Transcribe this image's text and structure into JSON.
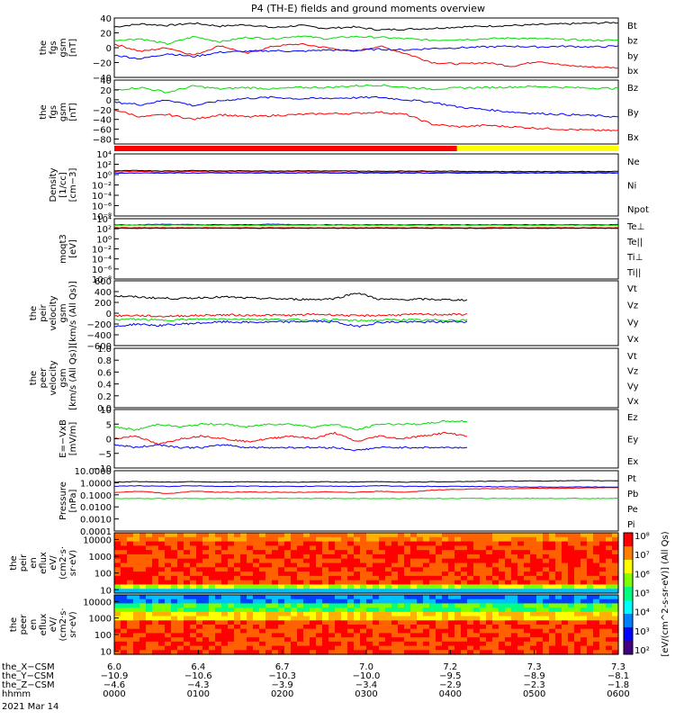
{
  "chart_data": {
    "type": "line",
    "title": "P4 (TH-E) fields and ground moments overview",
    "panels": [
      {
        "id": "fgs",
        "ylabel": [
          "the",
          "fgs",
          "gsm",
          "[nT]"
        ],
        "ylim": [
          -40,
          40
        ],
        "ticks": [
          "40",
          "20",
          "0",
          "−20",
          "−40"
        ],
        "tick_values": [
          40,
          20,
          0,
          -20,
          -40
        ],
        "series": [
          {
            "name": "Bt",
            "color": "#000000",
            "values": [
              28,
              32,
              30,
              33,
              29,
              31,
              27,
              30,
              26,
              28,
              24,
              25,
              26,
              28,
              29,
              30,
              31,
              32,
              33,
              34
            ]
          },
          {
            "name": "bz",
            "color": "#ff0000",
            "values": [
              5,
              -5,
              0,
              -10,
              3,
              -8,
              2,
              5,
              0,
              -5,
              2,
              -8,
              -20,
              -22,
              -20,
              -25,
              -18,
              -24,
              -26,
              -27
            ]
          },
          {
            "name": "by",
            "color": "#00dd00",
            "values": [
              10,
              12,
              5,
              15,
              8,
              14,
              12,
              16,
              12,
              15,
              14,
              12,
              10,
              11,
              12,
              13,
              12,
              11,
              10,
              10
            ]
          },
          {
            "name": "bx",
            "color": "#0000ff",
            "values": [
              -10,
              -15,
              -8,
              -12,
              -6,
              -5,
              -4,
              -5,
              -3,
              -4,
              -2,
              -3,
              -1,
              0,
              1,
              2,
              1,
              2,
              1,
              2
            ]
          }
        ]
      },
      {
        "id": "fgs_gsm",
        "ylabel": [
          "the",
          "fgs",
          "gsm",
          "[nT]"
        ],
        "ylim": [
          -90,
          40
        ],
        "ticks": [
          "40",
          "20",
          "0",
          "−20",
          "−40",
          "−60",
          "−80"
        ],
        "tick_values": [
          40,
          20,
          0,
          -20,
          -40,
          -60,
          -80
        ],
        "series": [
          {
            "name": "Bz",
            "color": "#ff0000",
            "values": [
              -20,
              -35,
              -30,
              -40,
              -30,
              -35,
              -32,
              -30,
              -28,
              -28,
              -25,
              -30,
              -50,
              -55,
              -52,
              -55,
              -58,
              -60,
              -62,
              -63
            ]
          },
          {
            "name": "By",
            "color": "#00dd00",
            "values": [
              20,
              25,
              15,
              28,
              22,
              25,
              22,
              25,
              25,
              28,
              30,
              25,
              22,
              24,
              25,
              26,
              27,
              25,
              24,
              23
            ]
          },
          {
            "name": "Bx",
            "color": "#0000ff",
            "values": [
              -5,
              -10,
              0,
              -12,
              -2,
              3,
              5,
              2,
              3,
              4,
              5,
              0,
              -5,
              -15,
              -20,
              -25,
              -28,
              -30,
              -32,
              -35
            ]
          }
        ]
      },
      {
        "id": "density",
        "ylabel": [
          "Density",
          "[1/cc]",
          "[cm−3]"
        ],
        "log": true,
        "ylim": [
          -8,
          4
        ],
        "ticks": [
          "10⁴",
          "10²",
          "10⁰",
          "10⁻²",
          "10⁻⁴",
          "10⁻⁶",
          "10⁻⁸"
        ],
        "tick_values": [
          4,
          2,
          0,
          -2,
          -4,
          -6,
          -8
        ],
        "series": [
          {
            "name": "Ne",
            "color": "#ff0000",
            "values": [
              0.5,
              0.6,
              0.5,
              0.6,
              0.5,
              0.55,
              0.5,
              0.55,
              0.5,
              0.5,
              0.45,
              0.5,
              0.5,
              0.45,
              0.45,
              0.4,
              0.4,
              0.4,
              0.4,
              0.4
            ]
          },
          {
            "name": "Ni",
            "color": "#000000",
            "values": [
              0.7,
              0.8,
              0.7,
              0.8,
              0.7,
              0.75,
              0.7,
              0.75,
              0.7,
              0.7,
              0.65,
              0.7,
              0.7,
              0.65,
              0.6,
              0.6,
              0.6,
              0.6,
              0.6,
              0.6
            ]
          },
          {
            "name": "Npot",
            "color": "#0000ff",
            "values": [
              0.3,
              0.3,
              0.3,
              0.3,
              0.3,
              0.3,
              0.3,
              0.3,
              0.3,
              0.3,
              0.3,
              0.3,
              0.3,
              0.3,
              0.3,
              0.3,
              0.3,
              0.3,
              0.3,
              0.3
            ]
          }
        ]
      },
      {
        "id": "temp",
        "ylabel": [
          "moqt3",
          "[eV]"
        ],
        "log": true,
        "ylim": [
          -8,
          4
        ],
        "ticks": [
          "10⁴",
          "10²",
          "10⁰",
          "10⁻²",
          "10⁻⁴",
          "10⁻⁶",
          "10⁻⁸"
        ],
        "tick_values": [
          4,
          2,
          0,
          -2,
          -4,
          -6,
          -8
        ],
        "series": [
          {
            "name": "Te⊥",
            "color": "#ff0000",
            "values": [
              2.2,
              2.2,
              2.2,
              2.2,
              2.2,
              2.2,
              2.2,
              2.2,
              2.2,
              2.2,
              2.2,
              2.2,
              2.2,
              2.2,
              2.2,
              2.2,
              2.2,
              2.2,
              2.2,
              2.2
            ]
          },
          {
            "name": "Te||",
            "color": "#000000",
            "values": [
              2.1,
              2.1,
              2.1,
              2.1,
              2.1,
              2.1,
              2.1,
              2.1,
              2.1,
              2.1,
              2.1,
              2.1,
              2.1,
              2.1,
              2.1,
              2.1,
              2.1,
              2.1,
              2.1,
              2.1
            ]
          },
          {
            "name": "Ti⊥",
            "color": "#0000ff",
            "values": [
              2.8,
              2.8,
              2.9,
              2.8,
              2.8,
              2.8,
              2.9,
              2.8,
              2.8,
              2.8,
              2.8,
              2.8,
              2.8,
              2.8,
              2.8,
              2.8,
              2.8,
              2.8,
              2.8,
              2.8
            ]
          },
          {
            "name": "Ti||",
            "color": "#00dd00",
            "values": [
              2.7,
              2.7,
              2.7,
              2.7,
              2.7,
              2.7,
              2.7,
              2.7,
              2.7,
              2.7,
              2.7,
              2.7,
              2.7,
              2.7,
              2.7,
              2.7,
              2.7,
              2.7,
              2.7,
              2.7
            ]
          }
        ]
      },
      {
        "id": "peir_vel",
        "ylabel": [
          "the",
          "peir",
          "velocity",
          "gsm",
          "[km/s (All Qs)]"
        ],
        "ylim": [
          -600,
          600
        ],
        "ticks": [
          "600",
          "400",
          "200",
          "0",
          "−200",
          "−400",
          "−600"
        ],
        "tick_values": [
          600,
          400,
          200,
          0,
          -200,
          -400,
          -600
        ],
        "series": [
          {
            "name": "Vt",
            "color": "#000000",
            "values": [
              320,
              300,
              280,
              270,
              290,
              300,
              280,
              270,
              260,
              255,
              270,
              380,
              260,
              250,
              260,
              250,
              245
            ]
          },
          {
            "name": "Vz",
            "color": "#ff0000",
            "values": [
              -50,
              -40,
              -60,
              -50,
              -40,
              -30,
              -40,
              -35,
              -40,
              -20,
              -30,
              -50,
              -40,
              -30,
              -20,
              -25,
              -20
            ]
          },
          {
            "name": "Vy",
            "color": "#00dd00",
            "values": [
              -120,
              -110,
              -130,
              -120,
              -110,
              -105,
              -110,
              -115,
              -120,
              -130,
              -120,
              -140,
              -130,
              -120,
              -130,
              -125,
              -130
            ]
          },
          {
            "name": "Vx",
            "color": "#0000ff",
            "values": [
              -250,
              -200,
              -230,
              -200,
              -180,
              -160,
              -170,
              -165,
              -160,
              -150,
              -160,
              -250,
              -170,
              -160,
              -165,
              -160,
              -155
            ]
          }
        ]
      },
      {
        "id": "peer_vel",
        "ylabel": [
          "the",
          "peer",
          "velocity",
          "gsm",
          "[km/s (All Qs)]"
        ],
        "ylim": [
          0,
          1
        ],
        "ticks": [
          "1.0",
          "0.8",
          "0.6",
          "0.4",
          "0.2",
          "0.0"
        ],
        "tick_values": [
          1,
          0.8,
          0.6,
          0.4,
          0.2,
          0
        ],
        "series": [
          {
            "name": "Vt",
            "color": "#000000",
            "values": []
          },
          {
            "name": "Vz",
            "color": "#ff0000",
            "values": []
          },
          {
            "name": "Vy",
            "color": "#00dd00",
            "values": []
          },
          {
            "name": "Vx",
            "color": "#0000ff",
            "values": []
          }
        ]
      },
      {
        "id": "efield",
        "ylabel": [
          "E=−VxB",
          "[mV/m]"
        ],
        "ylim": [
          -10,
          10
        ],
        "ticks": [
          "10",
          "5",
          "0",
          "−5",
          "−10"
        ],
        "tick_values": [
          10,
          5,
          0,
          -5,
          -10
        ],
        "series": [
          {
            "name": "Ez",
            "color": "#ff0000",
            "values": [
              0,
              1,
              -2,
              0,
              1,
              0,
              -1,
              0,
              1,
              0,
              2,
              -1,
              1,
              0,
              1,
              2,
              1
            ]
          },
          {
            "name": "Ey",
            "color": "#00dd00",
            "values": [
              4,
              3,
              5,
              4,
              5,
              5,
              4,
              5,
              5,
              4,
              5,
              3,
              5,
              5,
              5,
              6,
              6
            ]
          },
          {
            "name": "Ex",
            "color": "#0000ff",
            "values": [
              -2,
              -3,
              -2,
              -3,
              -3,
              -2,
              -3,
              -3,
              -3,
              -3,
              -3,
              -4,
              -3,
              -3,
              -3,
              -3,
              -3
            ]
          }
        ]
      },
      {
        "id": "pressure",
        "ylabel": [
          "Pressure",
          "[nPa]"
        ],
        "log": true,
        "ylim": [
          -4,
          1
        ],
        "ticks": [
          "10.0000",
          "1.0000",
          "0.1000",
          "0.0100",
          "0.0010",
          "0.0001"
        ],
        "tick_values": [
          1,
          0,
          -1,
          -2,
          -3,
          -4
        ],
        "series": [
          {
            "name": "Pt",
            "color": "#000000",
            "values": [
              0.05,
              0.1,
              0.05,
              0.1,
              0.05,
              0.08,
              0.05,
              0.05,
              0.08,
              0.05,
              0.1,
              0.05,
              0.08,
              0.1,
              0.12,
              0.15,
              0.15,
              0.16,
              0.17,
              0.17
            ]
          },
          {
            "name": "Pb",
            "color": "#ff0000",
            "values": [
              -0.8,
              -0.7,
              -0.9,
              -0.7,
              -0.8,
              -0.75,
              -0.8,
              -0.8,
              -0.75,
              -0.8,
              -0.7,
              -0.8,
              -0.6,
              -0.55,
              -0.5,
              -0.5,
              -0.45,
              -0.45,
              -0.42,
              -0.4
            ]
          },
          {
            "name": "Pe",
            "color": "#00dd00",
            "values": [
              -1.3,
              -1.3,
              -1.3,
              -1.3,
              -1.3,
              -1.3,
              -1.3,
              -1.3,
              -1.3,
              -1.3,
              -1.3,
              -1.3,
              -1.3,
              -1.3,
              -1.3,
              -1.3,
              -1.3,
              -1.3,
              -1.3,
              -1.3
            ]
          },
          {
            "name": "Pi",
            "color": "#0000ff",
            "values": [
              -0.3,
              -0.25,
              -0.3,
              -0.25,
              -0.3,
              -0.28,
              -0.3,
              -0.3,
              -0.28,
              -0.3,
              -0.25,
              -0.3,
              -0.3,
              -0.3,
              -0.32,
              -0.35,
              -0.35,
              -0.35,
              -0.35,
              -0.35
            ]
          }
        ]
      },
      {
        "id": "peir_eflux",
        "type": "heatmap",
        "ylabel": [
          "the",
          "peir",
          "en",
          "eflux",
          "eV/",
          "(cm2·s·",
          "sr·eV)"
        ],
        "ticks": [
          "10000",
          "1000",
          "100",
          "10"
        ],
        "tick_values": [
          4,
          3,
          2,
          1
        ]
      },
      {
        "id": "peer_eflux",
        "type": "heatmap",
        "ylabel": [
          "the",
          "peer",
          "en",
          "eflux",
          "eV/",
          "(cm2·s·",
          "sr·eV)"
        ],
        "ticks": [
          "10000",
          "1000",
          "100",
          "10"
        ],
        "tick_values": [
          4,
          3,
          2,
          1
        ]
      }
    ],
    "colorbar": {
      "label": "[eV/(cm^2-s-sr-eV)] (All Qs)",
      "ticks": [
        "10⁸",
        "10⁷",
        "10⁶",
        "10⁵",
        "10⁴",
        "10³",
        "10²"
      ],
      "tick_values": [
        8,
        7,
        6,
        5,
        4,
        3,
        2
      ]
    },
    "xaxis": {
      "rows": [
        {
          "label": "the_X−CSM",
          "values": [
            "6.0",
            "6.4",
            "6.7",
            "7.0",
            "7.2",
            "7.3",
            "7.3"
          ]
        },
        {
          "label": "the_Y−CSM",
          "values": [
            "−10.9",
            "−10.6",
            "−10.3",
            "−10.0",
            "−9.5",
            "−8.9",
            "−8.1"
          ]
        },
        {
          "label": "the_Z−CSM",
          "values": [
            "−4.6",
            "−4.3",
            "−3.9",
            "−3.4",
            "−2.9",
            "−2.3",
            "−1.8"
          ]
        },
        {
          "label": "hhmm",
          "values": [
            "0000",
            "0100",
            "0200",
            "0300",
            "0400",
            "0500",
            "0600"
          ]
        }
      ],
      "date": "2021 Mar 14"
    },
    "status_bar": {
      "colors": [
        "#ff0000",
        "#ffff00"
      ],
      "split_time_fraction": 0.68
    }
  }
}
